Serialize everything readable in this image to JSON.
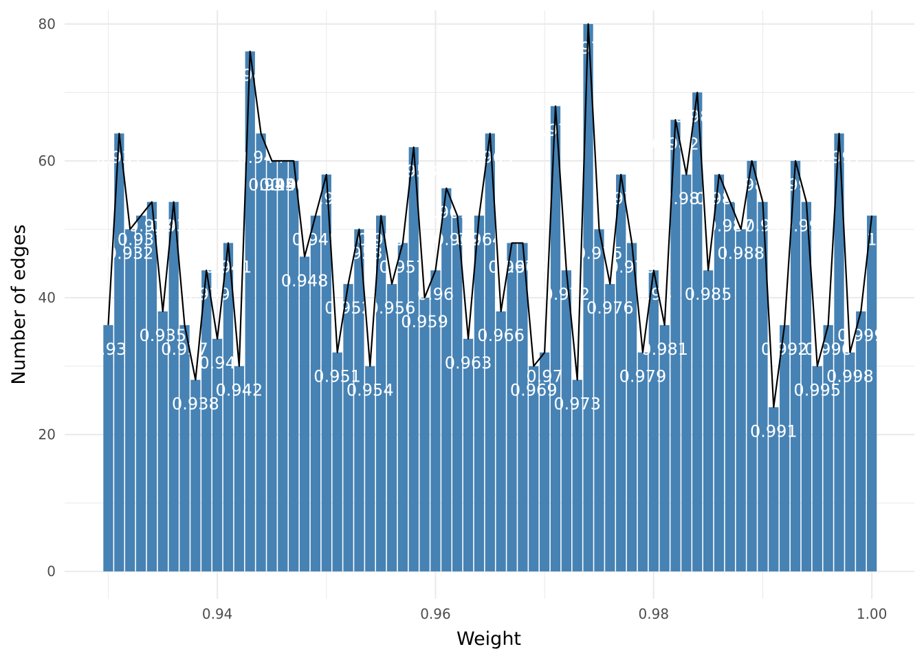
{
  "chart_data": {
    "type": "bar",
    "xlabel": "Weight",
    "ylabel": "Number of edges",
    "xlim": [
      0.926,
      1.0039
    ],
    "ylim": [
      -4,
      82
    ],
    "x_ticks": [
      0.94,
      0.96,
      0.98,
      1.0
    ],
    "x_tick_labels": [
      "0.94",
      "0.96",
      "0.98",
      "1.00"
    ],
    "y_ticks": [
      0,
      20,
      40,
      60,
      80
    ],
    "y_tick_labels": [
      "0",
      "20",
      "40",
      "60",
      "80"
    ],
    "grid": true,
    "overlay_line": true,
    "bar_color": "#4682B4",
    "line_color": "#000000",
    "x": [
      0.93,
      0.931,
      0.932,
      0.933,
      0.934,
      0.935,
      0.936,
      0.937,
      0.938,
      0.939,
      0.94,
      0.941,
      0.942,
      0.943,
      0.944,
      0.945,
      0.946,
      0.947,
      0.948,
      0.949,
      0.95,
      0.951,
      0.952,
      0.953,
      0.954,
      0.955,
      0.956,
      0.957,
      0.958,
      0.959,
      0.96,
      0.961,
      0.962,
      0.963,
      0.964,
      0.965,
      0.966,
      0.967,
      0.968,
      0.969,
      0.97,
      0.971,
      0.972,
      0.973,
      0.974,
      0.975,
      0.976,
      0.977,
      0.978,
      0.979,
      0.98,
      0.981,
      0.982,
      0.983,
      0.984,
      0.985,
      0.986,
      0.987,
      0.988,
      0.989,
      0.99,
      0.991,
      0.992,
      0.993,
      0.994,
      0.995,
      0.996,
      0.997,
      0.998,
      0.999,
      1.0
    ],
    "values": [
      36,
      64,
      50,
      52,
      54,
      38,
      54,
      36,
      28,
      44,
      34,
      48,
      30,
      76,
      64,
      60,
      60,
      60,
      46,
      52,
      58,
      32,
      42,
      50,
      30,
      52,
      42,
      48,
      62,
      40,
      44,
      56,
      52,
      34,
      52,
      64,
      38,
      48,
      48,
      30,
      32,
      68,
      44,
      28,
      80,
      50,
      42,
      58,
      48,
      32,
      44,
      36,
      66,
      58,
      70,
      44,
      58,
      54,
      50,
      60,
      54,
      24,
      36,
      60,
      54,
      30,
      36,
      64,
      32,
      38,
      52
    ],
    "labels": [
      "0.93",
      "0.931",
      "0.932",
      "0.933",
      "0.934",
      "0.935",
      "0.936",
      "0.937",
      "0.938",
      "0.939",
      "0.94",
      "0.941",
      "0.942",
      "0.943",
      "0.944",
      "0.945",
      "0.946",
      "0.947",
      "0.948",
      "0.949",
      "0.95",
      "0.951",
      "0.952",
      "0.953",
      "0.954",
      "0.955",
      "0.956",
      "0.957",
      "0.958",
      "0.959",
      "0.96",
      "0.961",
      "0.962",
      "0.963",
      "0.964",
      "0.965",
      "0.966",
      "0.967",
      "0.968",
      "0.969",
      "0.97",
      "0.971",
      "0.972",
      "0.973",
      "0.974",
      "0.975",
      "0.976",
      "0.977",
      "0.978",
      "0.979",
      "0.98",
      "0.981",
      "0.982",
      "0.983",
      "0.984",
      "0.985",
      "0.986",
      "0.987",
      "0.988",
      "0.989",
      "0.99",
      "0.991",
      "0.992",
      "0.993",
      "0.994",
      "0.995",
      "0.996",
      "0.997",
      "0.998",
      "0.999",
      "1"
    ]
  }
}
